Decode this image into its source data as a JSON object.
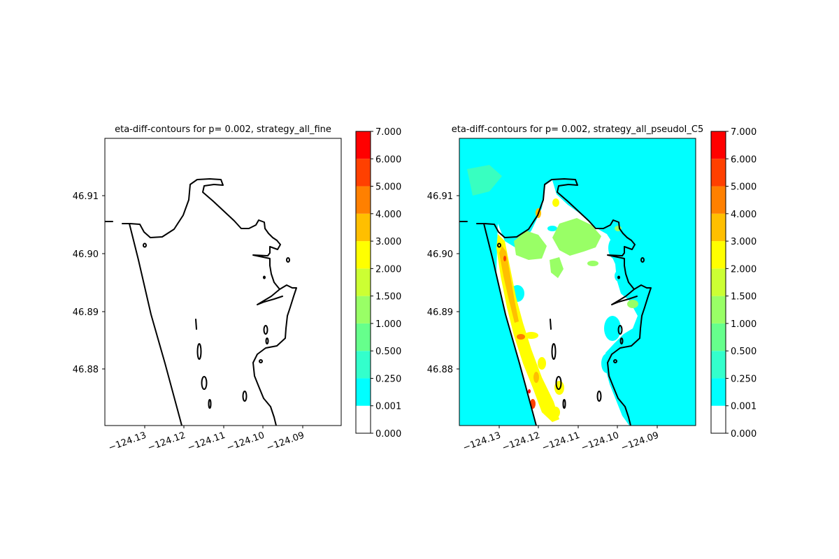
{
  "panels": [
    {
      "title": "eta-diff-contours for p= 0.002, strategy_all_fine",
      "overlay": "none"
    },
    {
      "title": "eta-diff-contours for p= 0.002, strategy_all_pseudoI_C5",
      "overlay": "eta-diff"
    }
  ],
  "axes": {
    "x_ticks": [
      "−124.13",
      "−124.12",
      "−124.11",
      "−124.10",
      "−124.09"
    ],
    "y_ticks": [
      "46.91",
      "46.90",
      "46.89",
      "46.88"
    ],
    "x_tick_rotation_deg": 20
  },
  "colorbar": {
    "tick_labels": [
      "0.000",
      "0.001",
      "0.250",
      "0.500",
      "1.000",
      "1.500",
      "2.000",
      "3.000",
      "4.000",
      "5.000",
      "6.000",
      "7.000"
    ],
    "bin_colors": [
      "#ffffff",
      "#00ffff",
      "#33ffcc",
      "#66ff8c",
      "#99ff66",
      "#ccff33",
      "#ffff00",
      "#ffbf00",
      "#ff8000",
      "#ff4000",
      "#ff0000"
    ]
  },
  "colors": {
    "coastline": "#000000",
    "background": "#ffffff"
  }
}
